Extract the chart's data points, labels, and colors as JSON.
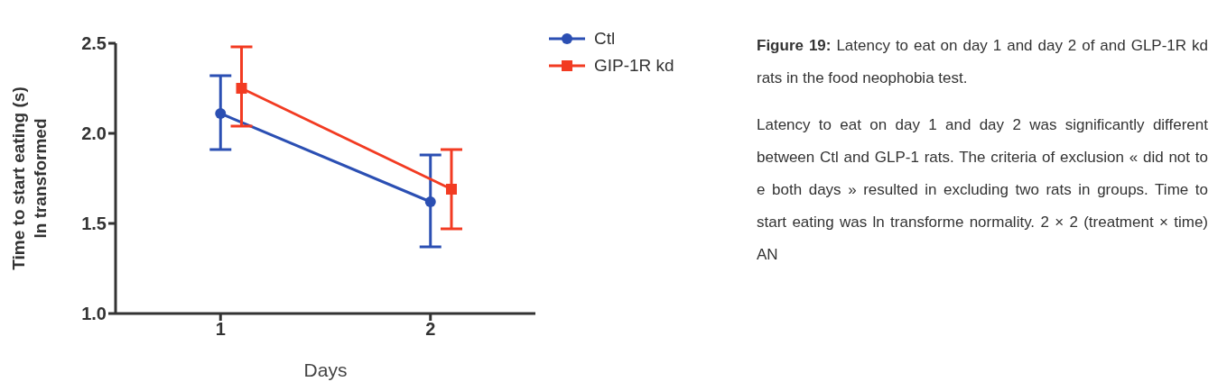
{
  "chart_data": {
    "type": "line",
    "xlabel": "Days",
    "ylabel": "Time to start eating (s)\nln transformed",
    "xlim": [
      0.5,
      2.5
    ],
    "xticks": [
      1,
      2
    ],
    "ylim": [
      1.0,
      2.5
    ],
    "yticks": [
      {
        "value": 1.0,
        "label": "1.0"
      },
      {
        "value": 1.5,
        "label": "1.5"
      },
      {
        "value": 2.0,
        "label": "2.0"
      },
      {
        "value": 2.5,
        "label": "2.5"
      }
    ],
    "series": [
      {
        "name": "Ctl",
        "color": "#2b4fb3",
        "marker": "circle",
        "x": [
          1,
          2
        ],
        "values": [
          2.11,
          1.62
        ],
        "errors": [
          [
            1.91,
            2.32
          ],
          [
            1.37,
            1.88
          ]
        ]
      },
      {
        "name": "GIP-1R kd",
        "color": "#f23b22",
        "marker": "square",
        "x": [
          1.1,
          2.1
        ],
        "values": [
          2.25,
          1.69
        ],
        "errors": [
          [
            2.04,
            2.48
          ],
          [
            1.47,
            1.91
          ]
        ]
      }
    ],
    "legend": "top right",
    "annotations": [
      "Figure 19: Latency to eat on day 1 and day 2 of and GLP-1R kd rats in the food neophobia test.",
      "Latency to eat on day 1 and day 2 was significantly different between Ctl and GLP-1 rats. The criteria of exclusion « did not to e both days » resulted in excluding two rats in groups. Time to start eating was ln transforme normality. 2 × 2 (treatment × time) AN"
    ]
  }
}
